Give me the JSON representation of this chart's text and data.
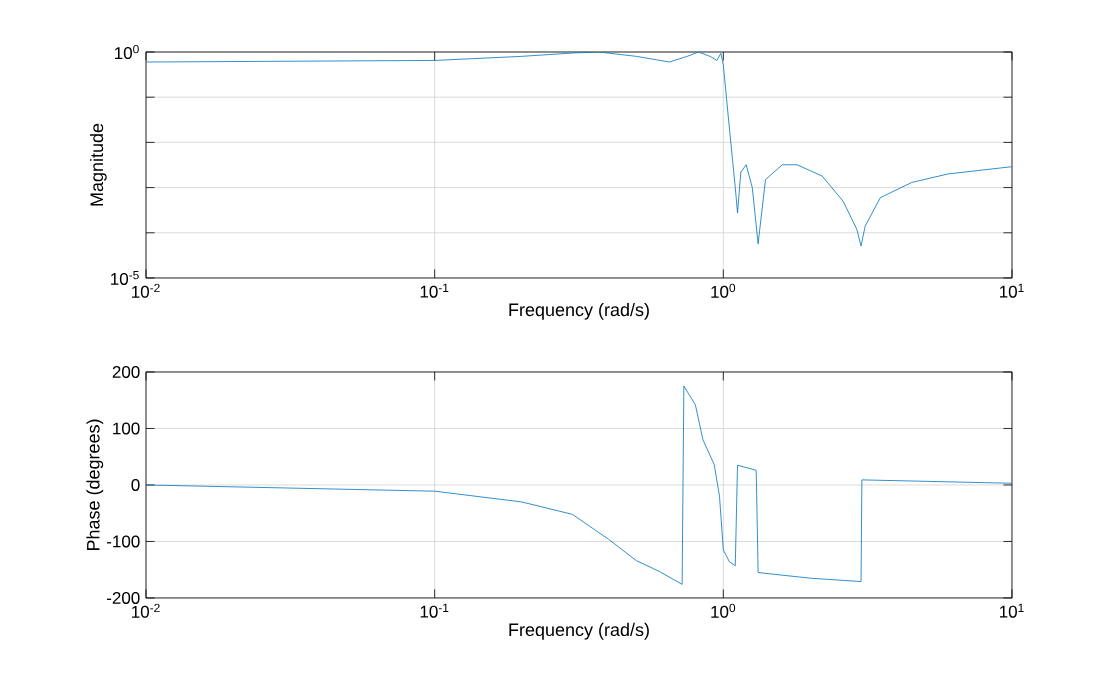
{
  "chart_data": [
    {
      "type": "line",
      "xlabel": "Frequency (rad/s)",
      "ylabel": "Magnitude",
      "log": "xy",
      "grid": true,
      "color": "#0072bd",
      "xlim": [
        0.01,
        10
      ],
      "ylim": [
        1e-05,
        1
      ],
      "xticks": [
        {
          "value": 0.01,
          "label": "10$^{-2}$"
        },
        {
          "value": 0.1,
          "label": "10$^{-1}$"
        },
        {
          "value": 1,
          "label": "10$^{0}$"
        },
        {
          "value": 10,
          "label": "10$^{1}$"
        }
      ],
      "yticks": [
        {
          "value": 1e-05,
          "label": "10$^{-5}$"
        },
        {
          "value": 0.0001,
          "label": null
        },
        {
          "value": 0.001,
          "label": null
        },
        {
          "value": 0.01,
          "label": null
        },
        {
          "value": 0.1,
          "label": null
        },
        {
          "value": 1,
          "label": "10$^{0}$"
        }
      ],
      "x": [
        0.01,
        0.1,
        0.2,
        0.3,
        0.37,
        0.5,
        0.65,
        0.75,
        0.82,
        0.9,
        0.95,
        0.98,
        1.0,
        1.05,
        1.1,
        1.12,
        1.15,
        1.2,
        1.26,
        1.32,
        1.4,
        1.6,
        1.8,
        2.2,
        2.6,
        2.9,
        3.0,
        3.1,
        3.5,
        4.5,
        6,
        10
      ],
      "values": [
        0.6,
        0.65,
        0.8,
        0.95,
        1.0,
        0.8,
        0.6,
        0.8,
        1.0,
        0.8,
        0.65,
        0.93,
        0.52,
        0.02,
        0.001,
        0.000275,
        0.0022,
        0.0032,
        0.001,
        5.7e-05,
        0.0015,
        0.0032,
        0.0032,
        0.0018,
        0.0005,
        0.00012,
        5.1e-05,
        0.00014,
        0.0006,
        0.0013,
        0.002,
        0.0029
      ]
    },
    {
      "type": "line",
      "xlabel": "Frequency (rad/s)",
      "ylabel": "Phase (degrees)",
      "log": "x",
      "grid": true,
      "color": "#0072bd",
      "xlim": [
        0.01,
        10
      ],
      "ylim": [
        -200,
        200
      ],
      "xticks": [
        {
          "value": 0.01,
          "label": "10$^{-2}$"
        },
        {
          "value": 0.1,
          "label": "10$^{-1}$"
        },
        {
          "value": 1,
          "label": "10$^{0}$"
        },
        {
          "value": 10,
          "label": "10$^{1}$"
        }
      ],
      "yticks": [
        -200,
        -100,
        0,
        100,
        200
      ],
      "x": [
        0.01,
        0.1,
        0.2,
        0.3,
        0.4,
        0.5,
        0.6,
        0.72,
        0.73,
        0.8,
        0.85,
        0.93,
        0.97,
        1.0,
        1.05,
        1.1,
        1.12,
        1.3,
        1.32,
        2.0,
        3.0,
        3.02,
        10
      ],
      "values": [
        0,
        -11,
        -30,
        -52,
        -96,
        -134,
        -153,
        -176,
        175,
        142,
        80,
        36,
        -20,
        -115,
        -136,
        -143,
        35,
        26,
        -155,
        -165,
        -171,
        9,
        3
      ]
    }
  ]
}
